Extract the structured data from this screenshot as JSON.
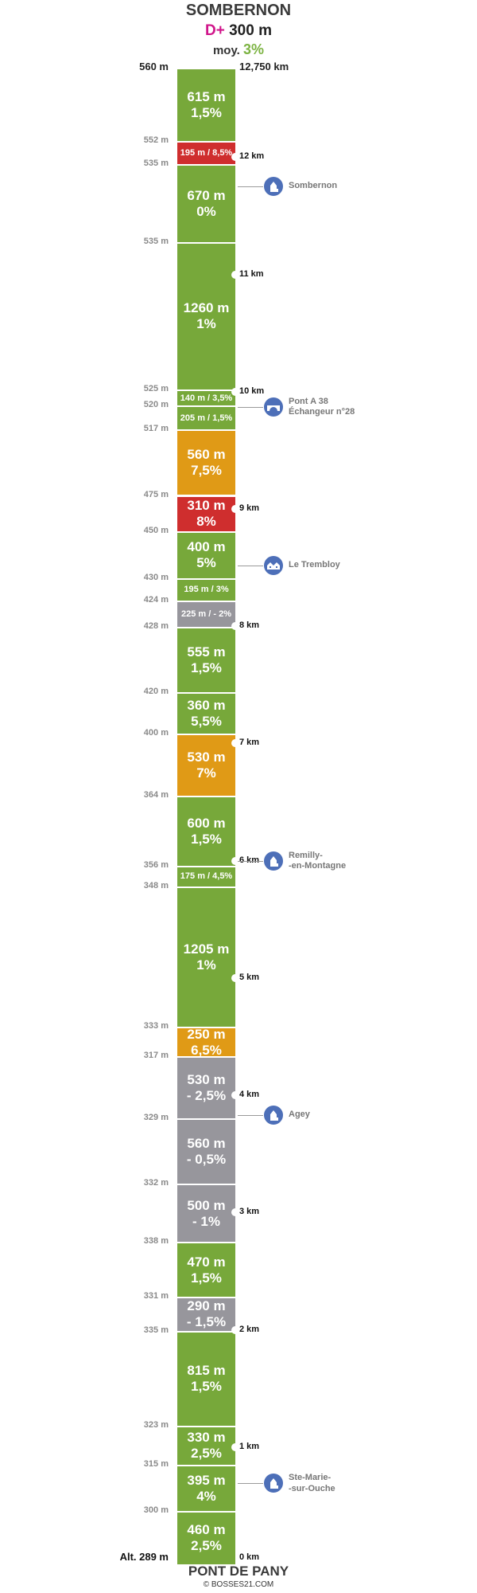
{
  "header": {
    "title": "SOMBERNON",
    "gain_label": "D+",
    "gain_value": "300 m",
    "avg_label": "moy.",
    "avg_value": "3%"
  },
  "top": {
    "altitude": "560 m",
    "distance": "12,750 km"
  },
  "bottom": {
    "altitude": "Alt. 289 m",
    "distance": "0 km",
    "title": "PONT DE PANY",
    "credit": "© BOSSES21.COM"
  },
  "colors": {
    "green": "#77a83a",
    "orange": "#e09a16",
    "red": "#cf2e2e",
    "gray": "#97969c",
    "poi": "#4d6fb8",
    "gain": "#d0148a"
  },
  "chart_data": {
    "type": "table",
    "total_distance_km": 12.75,
    "segments": [
      {
        "length_m": 615,
        "grade": "1,5%",
        "label": [
          "615 m",
          "1,5%"
        ],
        "color": "green"
      },
      {
        "length_m": 195,
        "grade": "8,5%",
        "label": [
          "195 m / 8,5%"
        ],
        "color": "red"
      },
      {
        "length_m": 670,
        "grade": "0%",
        "label": [
          "670 m",
          "0%"
        ],
        "color": "green"
      },
      {
        "length_m": 1260,
        "grade": "1%",
        "label": [
          "1260 m",
          "1%"
        ],
        "color": "green"
      },
      {
        "length_m": 140,
        "grade": "3,5%",
        "label": [
          "140 m / 3,5%"
        ],
        "color": "green"
      },
      {
        "length_m": 205,
        "grade": "1,5%",
        "label": [
          "205 m / 1,5%"
        ],
        "color": "green"
      },
      {
        "length_m": 560,
        "grade": "7,5%",
        "label": [
          "560 m",
          "7,5%"
        ],
        "color": "orange"
      },
      {
        "length_m": 310,
        "grade": "8%",
        "label": [
          "310 m",
          "8%"
        ],
        "color": "red"
      },
      {
        "length_m": 400,
        "grade": "5%",
        "label": [
          "400 m",
          "5%"
        ],
        "color": "green"
      },
      {
        "length_m": 195,
        "grade": "3%",
        "label": [
          "195 m / 3%"
        ],
        "color": "green"
      },
      {
        "length_m": 225,
        "grade": "- 2%",
        "label": [
          "225 m / - 2%"
        ],
        "color": "gray"
      },
      {
        "length_m": 555,
        "grade": "1,5%",
        "label": [
          "555 m",
          "1,5%"
        ],
        "color": "green"
      },
      {
        "length_m": 360,
        "grade": "5,5%",
        "label": [
          "360 m",
          "5,5%"
        ],
        "color": "green"
      },
      {
        "length_m": 530,
        "grade": "7%",
        "label": [
          "530 m",
          "7%"
        ],
        "color": "orange"
      },
      {
        "length_m": 600,
        "grade": "1,5%",
        "label": [
          "600 m",
          "1,5%"
        ],
        "color": "green"
      },
      {
        "length_m": 175,
        "grade": "4,5%",
        "label": [
          "175 m / 4,5%"
        ],
        "color": "green"
      },
      {
        "length_m": 1205,
        "grade": "1%",
        "label": [
          "1205 m",
          "1%"
        ],
        "color": "green"
      },
      {
        "length_m": 250,
        "grade": "6,5%",
        "label": [
          "250 m",
          "6,5%"
        ],
        "color": "orange"
      },
      {
        "length_m": 530,
        "grade": "- 2,5%",
        "label": [
          "530 m",
          "- 2,5%"
        ],
        "color": "gray"
      },
      {
        "length_m": 560,
        "grade": "- 0,5%",
        "label": [
          "560 m",
          "- 0,5%"
        ],
        "color": "gray"
      },
      {
        "length_m": 500,
        "grade": "- 1%",
        "label": [
          "500 m",
          "- 1%"
        ],
        "color": "gray"
      },
      {
        "length_m": 470,
        "grade": "1,5%",
        "label": [
          "470 m",
          "1,5%"
        ],
        "color": "green"
      },
      {
        "length_m": 290,
        "grade": "- 1,5%",
        "label": [
          "290 m",
          "- 1,5%"
        ],
        "color": "gray"
      },
      {
        "length_m": 815,
        "grade": "1,5%",
        "label": [
          "815 m",
          "1,5%"
        ],
        "color": "green"
      },
      {
        "length_m": 330,
        "grade": "2,5%",
        "label": [
          "330 m",
          "2,5%"
        ],
        "color": "green"
      },
      {
        "length_m": 395,
        "grade": "4%",
        "label": [
          "395 m",
          "4%"
        ],
        "color": "green"
      },
      {
        "length_m": 460,
        "grade": "2,5%",
        "label": [
          "460 m",
          "2,5%"
        ],
        "color": "green"
      }
    ],
    "boundary_altitudes": [
      "552 m",
      "535 m",
      "535 m",
      "525 m",
      "520 m",
      "517 m",
      "475 m",
      "450 m",
      "430 m",
      "424 m",
      "428 m",
      "420 m",
      "400 m",
      "364 m",
      "356 m",
      "348 m",
      "333 m",
      "317 m",
      "329 m",
      "332 m",
      "338 m",
      "331 m",
      "335 m",
      "323 m",
      "315 m",
      "300 m"
    ],
    "km_marks": [
      {
        "km": 12,
        "label": "12 km"
      },
      {
        "km": 11,
        "label": "11 km"
      },
      {
        "km": 10,
        "label": "10 km"
      },
      {
        "km": 9,
        "label": "9 km"
      },
      {
        "km": 8,
        "label": "8 km"
      },
      {
        "km": 7,
        "label": "7 km"
      },
      {
        "km": 6,
        "label": "6 km"
      },
      {
        "km": 5,
        "label": "5 km"
      },
      {
        "km": 4,
        "label": "4 km"
      },
      {
        "km": 3,
        "label": "3 km"
      },
      {
        "km": 2,
        "label": "2 km"
      },
      {
        "km": 1,
        "label": "1 km"
      }
    ],
    "pois": [
      {
        "km": 11.75,
        "lines": [
          "Sombernon"
        ],
        "icon": "church-icon"
      },
      {
        "km": 9.87,
        "lines": [
          "Pont A 38",
          "Échangeur n°28"
        ],
        "icon": "bridge-icon"
      },
      {
        "km": 8.52,
        "lines": [
          "Le Trembloy"
        ],
        "icon": "houses-icon"
      },
      {
        "km": 6.0,
        "lines": [
          "Remilly-",
          "-en-Montagne"
        ],
        "icon": "church-icon"
      },
      {
        "km": 3.83,
        "lines": [
          "Agey"
        ],
        "icon": "church-icon"
      },
      {
        "km": 0.69,
        "lines": [
          "Ste-Marie-",
          "-sur-Ouche"
        ],
        "icon": "church-icon"
      }
    ]
  }
}
